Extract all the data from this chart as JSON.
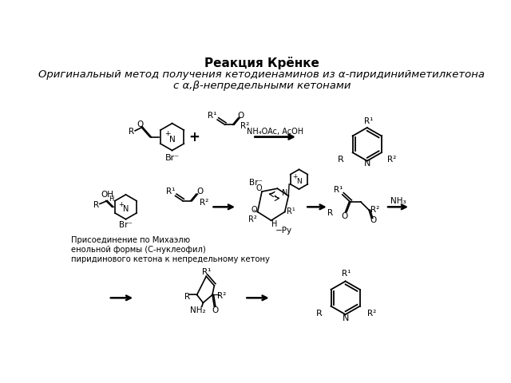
{
  "title": "Реакция Крёнке",
  "subtitle_line1": "Оригинальный метод получения кетодиенаминов из α-пиридинийметилкетона",
  "subtitle_line2": "с α,β-непредельными кетонами",
  "bg_color": "#ffffff",
  "title_fontsize": 11,
  "subtitle_fontsize": 9.5,
  "fig_width": 6.4,
  "fig_height": 4.8,
  "dpi": 100,
  "annotation_text": "Присоединение по Михаэлю\nенольной формы (С-нуклеофил)\nпиридинового кетона к непредельному кетону",
  "annotation_fontsize": 7.2
}
